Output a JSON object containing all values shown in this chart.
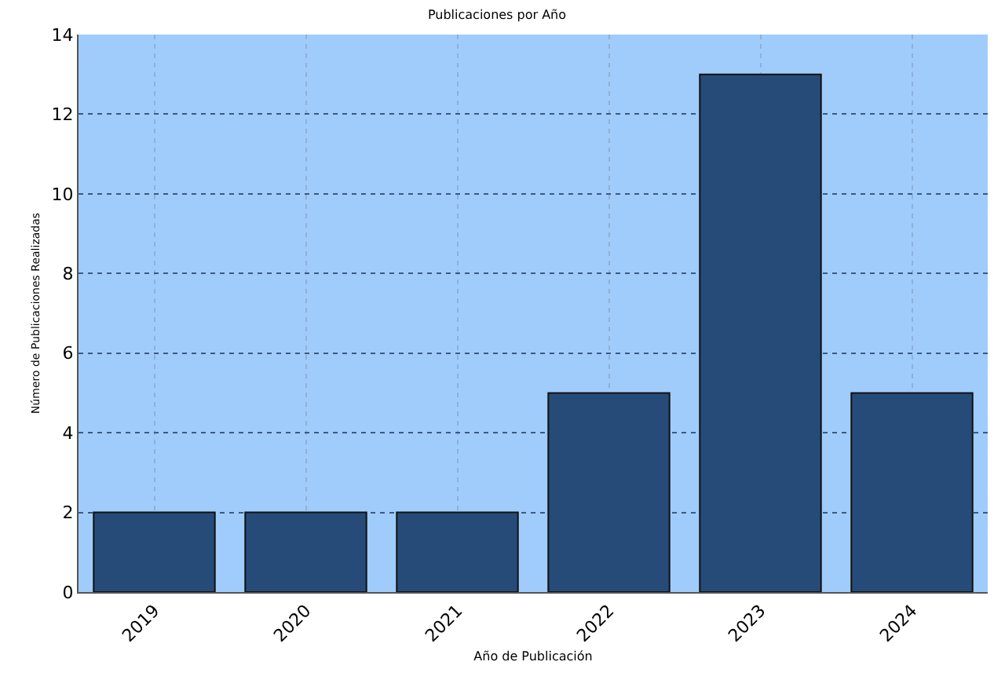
{
  "chart_data": {
    "type": "bar",
    "title": "Publicaciones por Año",
    "xlabel": "Año de Publicación",
    "ylabel": "Número de Publicaciones Realizadas",
    "categories": [
      "2019",
      "2020",
      "2021",
      "2022",
      "2023",
      "2024"
    ],
    "values": [
      2,
      2,
      2,
      5,
      13,
      5
    ],
    "color": "#264b78",
    "ylim": [
      0,
      14
    ],
    "yticks": [
      0,
      2,
      4,
      6,
      8,
      10,
      12,
      14
    ],
    "grid": true
  }
}
